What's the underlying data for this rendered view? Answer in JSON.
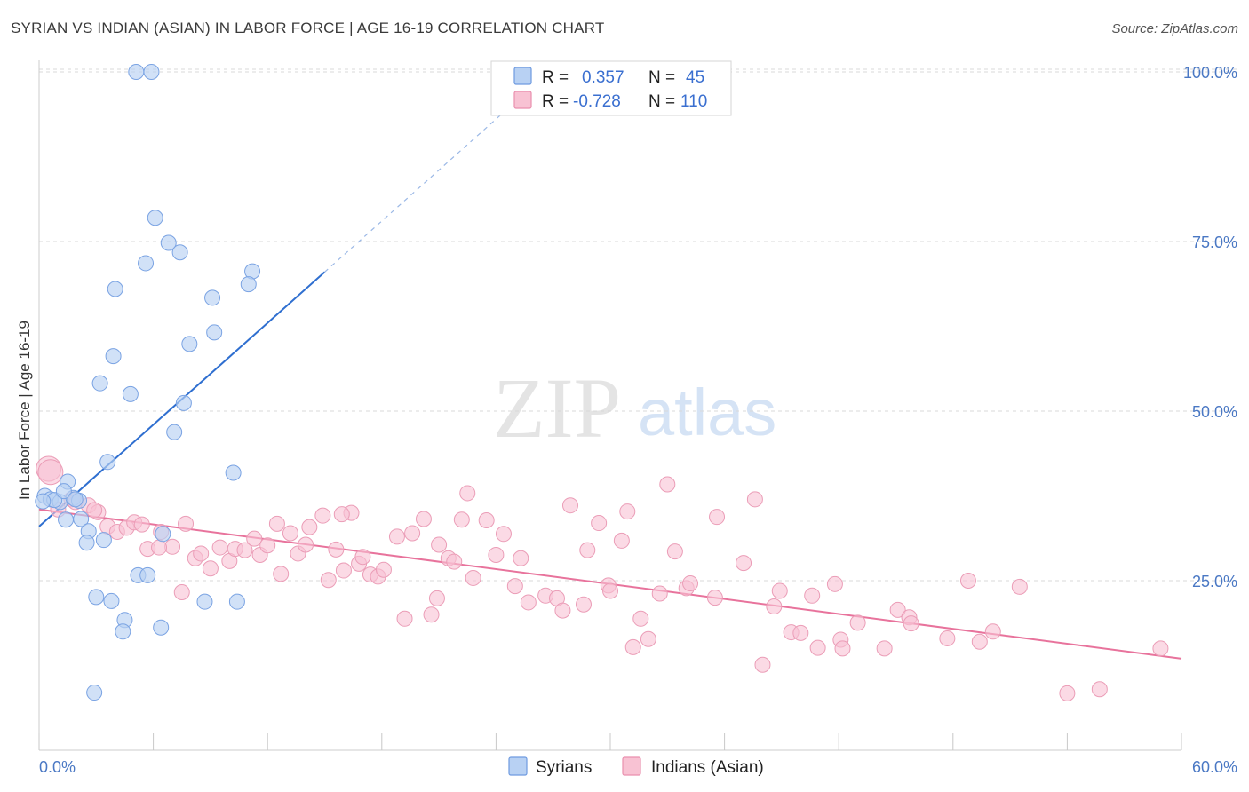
{
  "title": "SYRIAN VS INDIAN (ASIAN) IN LABOR FORCE | AGE 16-19 CORRELATION CHART",
  "source": "Source: ZipAtlas.com",
  "watermark": {
    "zip": "ZIP",
    "atlas": "atlas"
  },
  "legend": {
    "r_label": "R =",
    "n_label": "N =",
    "entries": [
      {
        "r": "0.357",
        "n": "45",
        "fill": "#b8d1f3",
        "stroke": "#6f9be0"
      },
      {
        "r": "-0.728",
        "n": "110",
        "fill": "#f8c2d3",
        "stroke": "#e98fae"
      }
    ]
  },
  "bottom_legend": [
    "Syrians",
    "Indians (Asian)"
  ],
  "colors": {
    "blue_fill": "#b8d1f3",
    "blue_stroke": "#7aa3e3",
    "blue_line": "#2f6fd0",
    "pink_fill": "#f8c2d3",
    "pink_stroke": "#eb9db7",
    "pink_line": "#e8739c",
    "grid": "#d9d9d9",
    "tick_text": "#4a78c4"
  },
  "chart_data": {
    "type": "scatter",
    "title": "SYRIAN VS INDIAN (ASIAN) IN LABOR FORCE | AGE 16-19 CORRELATION CHART",
    "xlabel": "",
    "ylabel": "In Labor Force | Age 16-19",
    "xlim": [
      0,
      60
    ],
    "ylim": [
      0,
      105
    ],
    "x_tick_labels": [
      "0.0%",
      "60.0%"
    ],
    "y_ticks": [
      25,
      50,
      75,
      100
    ],
    "y_tick_labels": [
      "25.0%",
      "50.0%",
      "75.0%",
      "100.0%"
    ],
    "grid": true,
    "legend_position": "top-center",
    "series": [
      {
        "name": "Syrians",
        "r": 0.357,
        "n": 45,
        "trendline": {
          "x": [
            0,
            15
          ],
          "y": [
            33,
            70.5
          ],
          "dashed_extension": {
            "x": [
              15,
              25.5
            ],
            "y": [
              70.5,
              96.8
            ]
          }
        },
        "points": [
          [
            5.1,
            100
          ],
          [
            5.9,
            100
          ],
          [
            6.1,
            78.5
          ],
          [
            6.8,
            74.8
          ],
          [
            7.4,
            73.4
          ],
          [
            5.6,
            71.8
          ],
          [
            11.2,
            70.6
          ],
          [
            11.0,
            68.7
          ],
          [
            4.0,
            68.0
          ],
          [
            9.1,
            66.7
          ],
          [
            9.2,
            61.6
          ],
          [
            7.9,
            59.9
          ],
          [
            3.9,
            58.1
          ],
          [
            3.2,
            54.1
          ],
          [
            4.8,
            52.5
          ],
          [
            7.6,
            51.2
          ],
          [
            7.1,
            46.9
          ],
          [
            3.6,
            42.5
          ],
          [
            10.2,
            40.9
          ],
          [
            1.5,
            39.6
          ],
          [
            0.3,
            37.5
          ],
          [
            0.6,
            37.0
          ],
          [
            1.1,
            36.6
          ],
          [
            1.8,
            37.2
          ],
          [
            2.1,
            36.8
          ],
          [
            0.8,
            36.9
          ],
          [
            1.3,
            38.2
          ],
          [
            0.2,
            36.7
          ],
          [
            1.4,
            34.0
          ],
          [
            2.2,
            34.1
          ],
          [
            2.6,
            32.3
          ],
          [
            6.5,
            31.9
          ],
          [
            3.4,
            31.0
          ],
          [
            2.5,
            30.6
          ],
          [
            5.2,
            25.8
          ],
          [
            5.7,
            25.8
          ],
          [
            3.0,
            22.6
          ],
          [
            3.8,
            22.0
          ],
          [
            8.7,
            21.9
          ],
          [
            10.4,
            21.9
          ],
          [
            4.5,
            19.2
          ],
          [
            4.4,
            17.5
          ],
          [
            6.4,
            18.1
          ],
          [
            2.9,
            8.5
          ],
          [
            1.9,
            37.0
          ]
        ]
      },
      {
        "name": "Indians (Asian)",
        "r": -0.728,
        "n": 110,
        "trendline": {
          "x": [
            0,
            60
          ],
          "y": [
            35.5,
            13.5
          ]
        },
        "points": [
          [
            0.5,
            41.5
          ],
          [
            0.6,
            41.0
          ],
          [
            1.7,
            37.0
          ],
          [
            1.9,
            36.6
          ],
          [
            2.6,
            36.1
          ],
          [
            3.1,
            35.1
          ],
          [
            3.6,
            33.0
          ],
          [
            4.1,
            32.2
          ],
          [
            4.6,
            32.8
          ],
          [
            5.0,
            33.6
          ],
          [
            5.4,
            33.3
          ],
          [
            6.4,
            32.2
          ],
          [
            5.7,
            29.7
          ],
          [
            7.0,
            30.0
          ],
          [
            7.5,
            23.3
          ],
          [
            7.7,
            33.4
          ],
          [
            8.2,
            28.3
          ],
          [
            8.5,
            29.0
          ],
          [
            9.0,
            26.8
          ],
          [
            9.5,
            29.9
          ],
          [
            10.0,
            27.9
          ],
          [
            10.3,
            29.7
          ],
          [
            10.8,
            29.5
          ],
          [
            11.3,
            31.2
          ],
          [
            11.6,
            28.8
          ],
          [
            12.0,
            30.2
          ],
          [
            12.5,
            33.4
          ],
          [
            12.7,
            26.0
          ],
          [
            13.2,
            32.0
          ],
          [
            13.6,
            29.0
          ],
          [
            14.0,
            30.3
          ],
          [
            14.2,
            32.9
          ],
          [
            14.9,
            34.6
          ],
          [
            15.2,
            25.1
          ],
          [
            15.6,
            29.6
          ],
          [
            16.0,
            26.5
          ],
          [
            16.4,
            35.0
          ],
          [
            16.8,
            27.5
          ],
          [
            17.0,
            28.5
          ],
          [
            17.4,
            25.9
          ],
          [
            17.8,
            25.6
          ],
          [
            18.1,
            26.6
          ],
          [
            18.8,
            31.5
          ],
          [
            19.2,
            19.4
          ],
          [
            19.6,
            32.0
          ],
          [
            20.2,
            34.1
          ],
          [
            20.6,
            20.0
          ],
          [
            20.9,
            22.4
          ],
          [
            21.5,
            28.3
          ],
          [
            21.8,
            27.8
          ],
          [
            22.5,
            37.9
          ],
          [
            22.8,
            25.4
          ],
          [
            23.5,
            33.9
          ],
          [
            24.0,
            28.8
          ],
          [
            24.4,
            31.9
          ],
          [
            25.0,
            24.2
          ],
          [
            25.3,
            28.3
          ],
          [
            25.7,
            21.8
          ],
          [
            26.6,
            22.8
          ],
          [
            27.2,
            22.4
          ],
          [
            27.5,
            20.6
          ],
          [
            27.9,
            36.1
          ],
          [
            28.6,
            21.5
          ],
          [
            28.8,
            29.5
          ],
          [
            29.4,
            33.5
          ],
          [
            29.9,
            24.3
          ],
          [
            30.0,
            23.5
          ],
          [
            30.6,
            30.9
          ],
          [
            30.9,
            35.2
          ],
          [
            31.2,
            15.2
          ],
          [
            31.6,
            19.4
          ],
          [
            32.0,
            16.4
          ],
          [
            32.6,
            23.1
          ],
          [
            33.0,
            39.2
          ],
          [
            33.4,
            29.3
          ],
          [
            34.0,
            23.9
          ],
          [
            34.2,
            24.6
          ],
          [
            35.5,
            22.5
          ],
          [
            35.6,
            34.4
          ],
          [
            37.0,
            27.6
          ],
          [
            37.6,
            37.0
          ],
          [
            38.0,
            12.6
          ],
          [
            38.6,
            21.2
          ],
          [
            38.9,
            23.5
          ],
          [
            39.5,
            17.4
          ],
          [
            40.0,
            17.3
          ],
          [
            40.6,
            22.8
          ],
          [
            40.9,
            15.1
          ],
          [
            41.8,
            24.5
          ],
          [
            42.1,
            16.3
          ],
          [
            42.2,
            15.0
          ],
          [
            43.0,
            18.8
          ],
          [
            44.4,
            15.0
          ],
          [
            45.1,
            20.7
          ],
          [
            45.7,
            19.6
          ],
          [
            45.8,
            18.7
          ],
          [
            47.7,
            16.5
          ],
          [
            48.8,
            25.0
          ],
          [
            49.4,
            16.0
          ],
          [
            50.1,
            17.5
          ],
          [
            51.5,
            24.1
          ],
          [
            54.0,
            8.4
          ],
          [
            55.7,
            9.0
          ],
          [
            58.9,
            15.0
          ],
          [
            1.0,
            35.5
          ],
          [
            2.9,
            35.4
          ],
          [
            6.3,
            29.9
          ],
          [
            15.9,
            34.8
          ],
          [
            22.2,
            34.0
          ],
          [
            21.0,
            30.3
          ]
        ]
      }
    ]
  }
}
